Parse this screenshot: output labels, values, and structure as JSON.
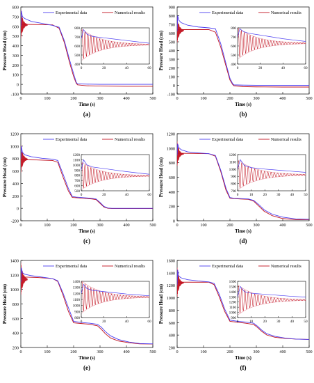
{
  "figure": {
    "ylabel": "Pressure Head (cm)",
    "xlabel": "Time (s)",
    "legend": [
      "Experimental data",
      "Numerical results"
    ],
    "colors": {
      "experimental": "#4b3df0",
      "numerical": "#c1121f",
      "envelope": "#e89aa6"
    }
  },
  "chart_data": [
    {
      "type": "line",
      "panel_label": "(a)",
      "xlim": [
        0,
        500
      ],
      "ylim": [
        -100,
        800
      ],
      "xticks": [
        0,
        100,
        200,
        300,
        400,
        500
      ],
      "yticks": [
        -100,
        0,
        100,
        200,
        300,
        400,
        500,
        600,
        700,
        800
      ],
      "xlabel": "Time (s)",
      "ylabel": "Pressure Head (cm)",
      "series": [
        {
          "name": "Experimental data",
          "x": [
            0,
            2,
            6,
            15,
            40,
            80,
            120,
            145,
            165,
            185,
            200,
            210,
            215,
            250,
            300,
            400,
            500
          ],
          "y": [
            600,
            760,
            700,
            680,
            650,
            630,
            610,
            590,
            450,
            250,
            110,
            20,
            5,
            2,
            0,
            0,
            0
          ]
        },
        {
          "name": "Numerical results",
          "x": [
            0,
            20,
            60,
            120,
            145,
            165,
            185,
            200,
            210,
            215,
            250,
            300,
            400,
            500
          ],
          "y": [
            620,
            620,
            618,
            615,
            580,
            430,
            220,
            80,
            10,
            -5,
            -15,
            -18,
            -20,
            -20
          ]
        }
      ],
      "inset": {
        "xlim": [
          0,
          60
        ],
        "ylim": [
          400,
          800
        ],
        "xticks": [
          0,
          20,
          40,
          60
        ],
        "yticks": [
          400,
          500,
          600,
          700,
          800
        ],
        "experimental": {
          "x": [
            0,
            2,
            5,
            10,
            20,
            30,
            40,
            50,
            60
          ],
          "y": [
            680,
            780,
            730,
            705,
            690,
            675,
            660,
            645,
            630
          ]
        },
        "numerical_mean": 615,
        "oscillation_amp": 170,
        "oscillation_decay": 0.06,
        "oscillation_period": 2.6
      }
    },
    {
      "type": "line",
      "panel_label": "(b)",
      "xlim": [
        0,
        500
      ],
      "ylim": [
        -100,
        900
      ],
      "xticks": [
        0,
        100,
        200,
        300,
        400,
        500
      ],
      "yticks": [
        -100,
        0,
        100,
        200,
        300,
        400,
        500,
        600,
        700,
        800,
        900
      ],
      "xlabel": "Time (s)",
      "ylabel": "Pressure Head (cm)",
      "series": [
        {
          "name": "Experimental data",
          "x": [
            0,
            2,
            6,
            15,
            40,
            80,
            120,
            145,
            165,
            185,
            200,
            210,
            215,
            250,
            300,
            400,
            500
          ],
          "y": [
            620,
            800,
            750,
            720,
            690,
            670,
            660,
            650,
            480,
            250,
            80,
            20,
            5,
            2,
            0,
            0,
            0
          ]
        },
        {
          "name": "Numerical results",
          "x": [
            0,
            20,
            60,
            120,
            145,
            165,
            185,
            200,
            210,
            215,
            250,
            300,
            400,
            500
          ],
          "y": [
            640,
            640,
            640,
            640,
            610,
            440,
            220,
            60,
            10,
            -5,
            -15,
            -18,
            -20,
            -20
          ]
        }
      ],
      "inset": {
        "xlim": [
          0,
          60
        ],
        "ylim": [
          400,
          800
        ],
        "xticks": [
          0,
          20,
          40,
          60
        ],
        "yticks": [
          400,
          500,
          600,
          700,
          800
        ],
        "experimental": {
          "x": [
            0,
            2,
            5,
            10,
            20,
            30,
            40,
            50,
            60
          ],
          "y": [
            700,
            790,
            760,
            740,
            720,
            700,
            680,
            665,
            650
          ]
        },
        "numerical_mean": 630,
        "oscillation_amp": 170,
        "oscillation_decay": 0.06,
        "oscillation_period": 2.6
      }
    },
    {
      "type": "line",
      "panel_label": "(c)",
      "xlim": [
        0,
        500
      ],
      "ylim": [
        -200,
        1200
      ],
      "xticks": [
        0,
        100,
        200,
        300,
        400,
        500
      ],
      "yticks": [
        -200,
        0,
        200,
        400,
        600,
        800,
        1000,
        1200
      ],
      "xlabel": "Time (s)",
      "ylabel": "Pressure Head (cm)",
      "series": [
        {
          "name": "Experimental data",
          "x": [
            0,
            2,
            6,
            15,
            40,
            80,
            120,
            140,
            160,
            180,
            195,
            210,
            240,
            270,
            285,
            300,
            315,
            330,
            345,
            400,
            500
          ],
          "y": [
            800,
            1000,
            900,
            860,
            830,
            805,
            790,
            770,
            550,
            320,
            190,
            180,
            170,
            160,
            150,
            95,
            30,
            5,
            0,
            0,
            0
          ]
        },
        {
          "name": "Numerical results",
          "x": [
            0,
            20,
            60,
            120,
            140,
            160,
            180,
            195,
            210,
            240,
            270,
            285,
            300,
            315,
            330,
            345,
            400,
            500
          ],
          "y": [
            780,
            780,
            778,
            770,
            740,
            500,
            280,
            175,
            170,
            160,
            150,
            140,
            80,
            20,
            0,
            -5,
            -5,
            -5
          ]
        }
      ],
      "inset": {
        "xlim": [
          0,
          60
        ],
        "ylim": [
          500,
          1200
        ],
        "xticks": [
          0,
          20,
          40,
          60
        ],
        "yticks": [
          500,
          600,
          700,
          800,
          900,
          1000,
          1100,
          1200
        ],
        "experimental": {
          "x": [
            0,
            2,
            5,
            10,
            20,
            30,
            40,
            50,
            60
          ],
          "y": [
            900,
            1100,
            1000,
            960,
            930,
            900,
            870,
            845,
            820
          ]
        },
        "numerical_mean": 790,
        "oscillation_amp": 260,
        "oscillation_decay": 0.06,
        "oscillation_period": 2.6
      }
    },
    {
      "type": "line",
      "panel_label": "(d)",
      "xlim": [
        0,
        500
      ],
      "ylim": [
        0,
        1200
      ],
      "xticks": [
        0,
        100,
        200,
        300,
        400,
        500
      ],
      "yticks": [
        0,
        200,
        400,
        600,
        800,
        1000,
        1200
      ],
      "xlabel": "Time (s)",
      "ylabel": "Pressure Head (cm)",
      "series": [
        {
          "name": "Experimental data",
          "x": [
            0,
            2,
            6,
            15,
            40,
            80,
            120,
            145,
            165,
            185,
            200,
            215,
            240,
            270,
            290,
            310,
            330,
            360,
            400,
            450,
            500
          ],
          "y": [
            900,
            1060,
            1010,
            980,
            950,
            935,
            925,
            900,
            700,
            450,
            320,
            310,
            305,
            300,
            280,
            220,
            150,
            90,
            50,
            25,
            20
          ]
        },
        {
          "name": "Numerical results",
          "x": [
            0,
            20,
            60,
            120,
            145,
            165,
            185,
            200,
            215,
            240,
            270,
            290,
            310,
            330,
            360,
            400,
            450,
            500
          ],
          "y": [
            930,
            930,
            928,
            925,
            890,
            680,
            420,
            310,
            305,
            300,
            295,
            270,
            200,
            130,
            70,
            30,
            15,
            15
          ]
        }
      ],
      "inset": {
        "xlim": [
          0,
          50
        ],
        "ylim": [
          700,
          1200
        ],
        "xticks": [
          0,
          10,
          20,
          30,
          40,
          50
        ],
        "yticks": [
          700,
          800,
          900,
          1000,
          1100,
          1200
        ],
        "experimental": {
          "x": [
            0,
            2,
            5,
            10,
            20,
            30,
            40,
            50
          ],
          "y": [
            1000,
            1130,
            1050,
            1020,
            1000,
            985,
            970,
            955
          ]
        },
        "numerical_mean": 920,
        "oscillation_amp": 200,
        "oscillation_decay": 0.07,
        "oscillation_period": 2.4
      }
    },
    {
      "type": "line",
      "panel_label": "(e)",
      "xlim": [
        0,
        500
      ],
      "ylim": [
        200,
        1400
      ],
      "xticks": [
        0,
        100,
        200,
        300,
        400,
        500
      ],
      "yticks": [
        200,
        400,
        600,
        800,
        1000,
        1200,
        1400
      ],
      "xlabel": "Time (s)",
      "ylabel": "Pressure Head (cm)",
      "series": [
        {
          "name": "Experimental data",
          "x": [
            0,
            2,
            6,
            15,
            40,
            80,
            120,
            140,
            160,
            180,
            200,
            230,
            260,
            290,
            305,
            320,
            340,
            370,
            410,
            450,
            500
          ],
          "y": [
            1100,
            1300,
            1230,
            1210,
            1190,
            1170,
            1150,
            1120,
            950,
            750,
            560,
            545,
            535,
            520,
            480,
            420,
            360,
            310,
            275,
            255,
            250
          ]
        },
        {
          "name": "Numerical results",
          "x": [
            0,
            20,
            60,
            120,
            140,
            160,
            180,
            200,
            230,
            260,
            290,
            305,
            320,
            340,
            370,
            410,
            450,
            500
          ],
          "y": [
            1170,
            1170,
            1165,
            1150,
            1110,
            920,
            700,
            540,
            530,
            520,
            500,
            450,
            390,
            330,
            290,
            265,
            250,
            248
          ]
        }
      ],
      "inset": {
        "xlim": [
          0,
          60
        ],
        "ylim": [
          800,
          1400
        ],
        "xticks": [
          0,
          20,
          40,
          60
        ],
        "yticks": [
          800,
          900,
          1000,
          1100,
          1200,
          1300,
          1400
        ],
        "experimental": {
          "x": [
            0,
            2,
            5,
            10,
            20,
            30,
            40,
            50,
            60
          ],
          "y": [
            1200,
            1350,
            1280,
            1250,
            1230,
            1210,
            1190,
            1175,
            1160
          ]
        },
        "numerical_mean": 1140,
        "oscillation_amp": 260,
        "oscillation_decay": 0.06,
        "oscillation_period": 2.6
      }
    },
    {
      "type": "line",
      "panel_label": "(f)",
      "xlim": [
        0,
        500
      ],
      "ylim": [
        200,
        1600
      ],
      "xticks": [
        0,
        100,
        200,
        300,
        400,
        500
      ],
      "yticks": [
        200,
        400,
        600,
        800,
        1000,
        1200,
        1400,
        1600
      ],
      "xlabel": "Time (s)",
      "ylabel": "Pressure Head (cm)",
      "series": [
        {
          "name": "Experimental data",
          "x": [
            0,
            2,
            6,
            15,
            40,
            80,
            120,
            140,
            160,
            180,
            200,
            230,
            260,
            290,
            305,
            320,
            340,
            370,
            410,
            450,
            500
          ],
          "y": [
            1200,
            1450,
            1350,
            1320,
            1290,
            1270,
            1255,
            1230,
            1050,
            820,
            640,
            620,
            610,
            590,
            540,
            480,
            420,
            380,
            350,
            335,
            330
          ]
        },
        {
          "name": "Numerical results",
          "x": [
            0,
            20,
            60,
            120,
            140,
            160,
            180,
            200,
            230,
            260,
            290,
            305,
            320,
            340,
            370,
            410,
            450,
            500
          ],
          "y": [
            1250,
            1250,
            1250,
            1250,
            1210,
            1010,
            780,
            620,
            605,
            590,
            570,
            520,
            460,
            400,
            365,
            345,
            335,
            330
          ]
        }
      ],
      "inset": {
        "xlim": [
          0,
          50
        ],
        "ylim": [
          900,
          1600
        ],
        "xticks": [
          0,
          10,
          20,
          30,
          40,
          50
        ],
        "yticks": [
          900,
          1000,
          1100,
          1200,
          1300,
          1400,
          1500,
          1600
        ],
        "experimental": {
          "x": [
            0,
            2,
            5,
            10,
            20,
            30,
            40,
            50
          ],
          "y": [
            1300,
            1500,
            1400,
            1370,
            1350,
            1330,
            1310,
            1295
          ]
        },
        "numerical_mean": 1240,
        "oscillation_amp": 280,
        "oscillation_decay": 0.07,
        "oscillation_period": 2.4
      }
    }
  ]
}
